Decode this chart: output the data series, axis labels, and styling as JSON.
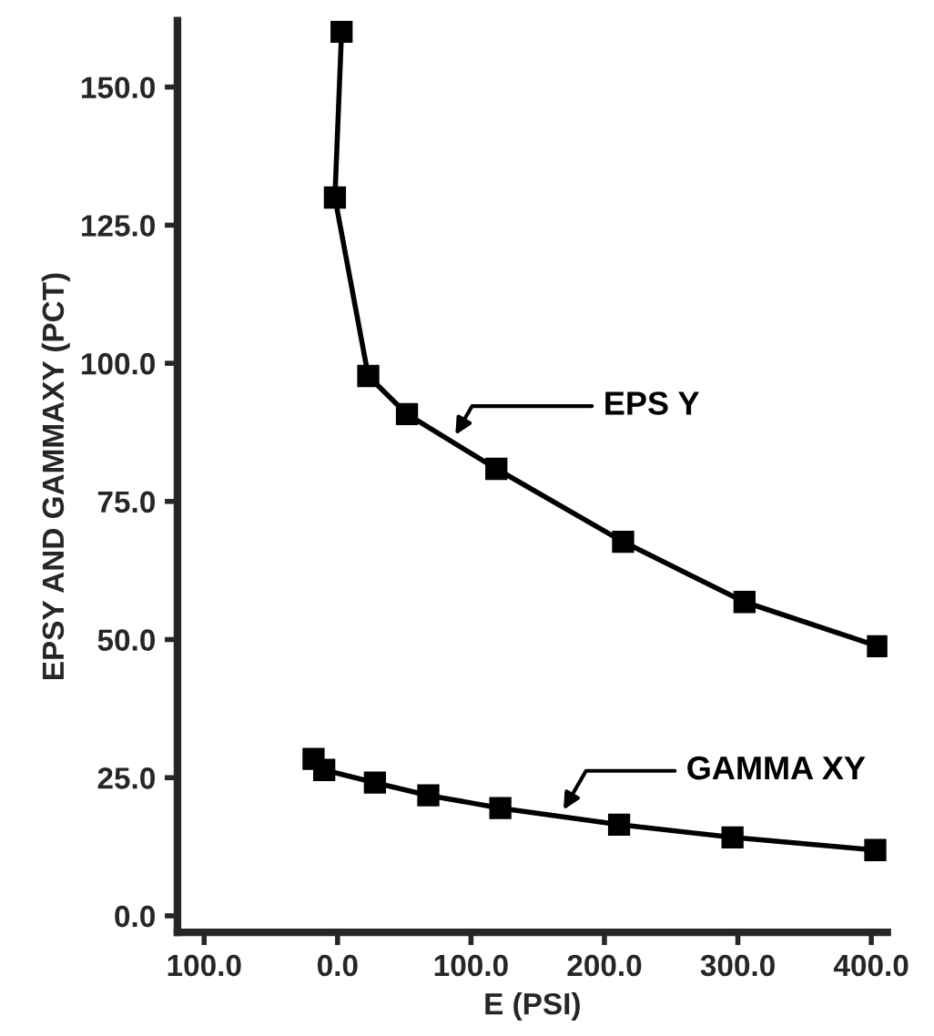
{
  "chart_data": {
    "type": "line",
    "xlabel": "E (PSI)",
    "ylabel": "EPSY AND GAMMAXY (PCT)",
    "marker": "square",
    "line_style": "solid",
    "grid": false,
    "legend": "right",
    "series": [
      {
        "name": "EPS Y",
        "color": "#000000",
        "x": [
          3,
          -2,
          23,
          52,
          119,
          214,
          305,
          405
        ],
        "values": [
          160,
          130,
          97.7,
          90.8,
          80.9,
          67.7,
          56.8,
          48.8
        ]
      },
      {
        "name": "GAMMA XY",
        "color": "#000000",
        "x": [
          -18,
          -10,
          28,
          68,
          122,
          211,
          296,
          403
        ],
        "values": [
          28.4,
          26.4,
          24.1,
          21.8,
          19.5,
          16.5,
          14.2,
          11.9
        ]
      }
    ],
    "xlim": [
      -120,
      412
    ],
    "ylim": [
      -3,
      162
    ],
    "xticks": [
      {
        "value": -100,
        "label": "100.0"
      },
      {
        "value": 0,
        "label": "0.0"
      },
      {
        "value": 100,
        "label": "100.0"
      },
      {
        "value": 200,
        "label": "200.0"
      },
      {
        "value": 300,
        "label": "300.0"
      },
      {
        "value": 400,
        "label": "400.0"
      }
    ],
    "yticks": [
      {
        "value": 0,
        "label": "0.0"
      },
      {
        "value": 25,
        "label": "25.0"
      },
      {
        "value": 50,
        "label": "50.0"
      },
      {
        "value": 75,
        "label": "75.0"
      },
      {
        "value": 100,
        "label": "100.0"
      },
      {
        "value": 125,
        "label": "125.0"
      },
      {
        "value": 150,
        "label": "150.0"
      }
    ]
  }
}
